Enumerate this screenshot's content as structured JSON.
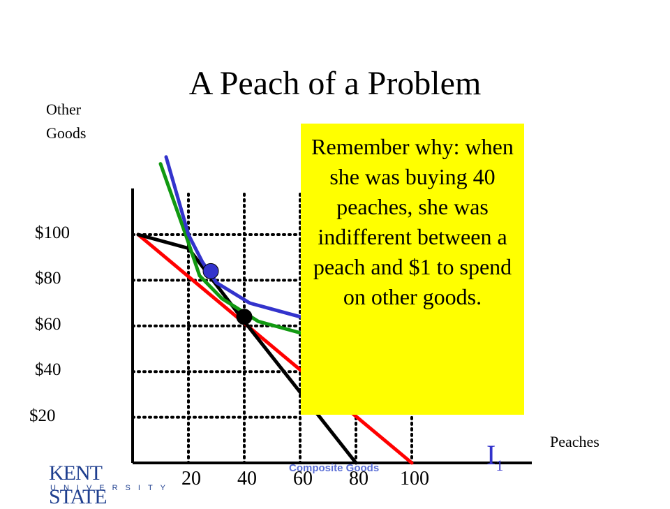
{
  "slide": {
    "title": "A Peach of a Problem"
  },
  "callout": {
    "text": "Remember why: when she was buying 40 peaches, she was indifferent between a peach and $1 to spend on other goods."
  },
  "footer": {
    "text": "Composite Goods"
  },
  "logo": {
    "top": "KENT STATE",
    "bottom": "UNIVERSITY",
    "color": "#1f3f8f"
  },
  "curve_label": {
    "main": "I",
    "sub": "1"
  },
  "chart_data": {
    "type": "line",
    "title": "A Peach of a Problem",
    "xlabel": "Peaches",
    "ylabel": "Other Goods",
    "x_ticks": [
      20,
      40,
      60,
      80,
      100
    ],
    "y_ticks": [
      100,
      80,
      60,
      40,
      20
    ],
    "y_tick_labels": [
      "$100",
      "$80",
      "$60",
      "$40",
      "$20"
    ],
    "xlim": [
      0,
      120
    ],
    "ylim": [
      0,
      130
    ],
    "grid": true,
    "series": [
      {
        "id": "budget-red",
        "color": "#ff0000",
        "points": [
          [
            2,
            100
          ],
          [
            100,
            0
          ]
        ]
      },
      {
        "id": "budget-black",
        "color": "#000000",
        "points": [
          [
            2,
            100
          ],
          [
            20,
            94
          ],
          [
            40,
            62
          ],
          [
            80,
            0
          ]
        ]
      },
      {
        "id": "indiff-green",
        "color": "#119911",
        "points": [
          [
            10,
            131
          ],
          [
            19,
            100
          ],
          [
            24,
            82
          ],
          [
            32,
            72
          ],
          [
            45,
            62
          ],
          [
            75,
            52
          ]
        ]
      },
      {
        "id": "indiff-blue",
        "color": "#3333cc",
        "points": [
          [
            12,
            134
          ],
          [
            20,
            100
          ],
          [
            25,
            88
          ],
          [
            30,
            79
          ],
          [
            42,
            70
          ],
          [
            60,
            64
          ],
          [
            80,
            56
          ],
          [
            100,
            46
          ],
          [
            127,
            32
          ]
        ]
      }
    ],
    "points": [
      {
        "id": "bundle-blue",
        "x": 28,
        "y": 84,
        "color": "#3333cc"
      },
      {
        "id": "bundle-black",
        "x": 40,
        "y": 64,
        "color": "#000000"
      }
    ],
    "colors": {
      "grid": "#000000",
      "axis": "#000000",
      "callout": "#ffff00"
    }
  }
}
